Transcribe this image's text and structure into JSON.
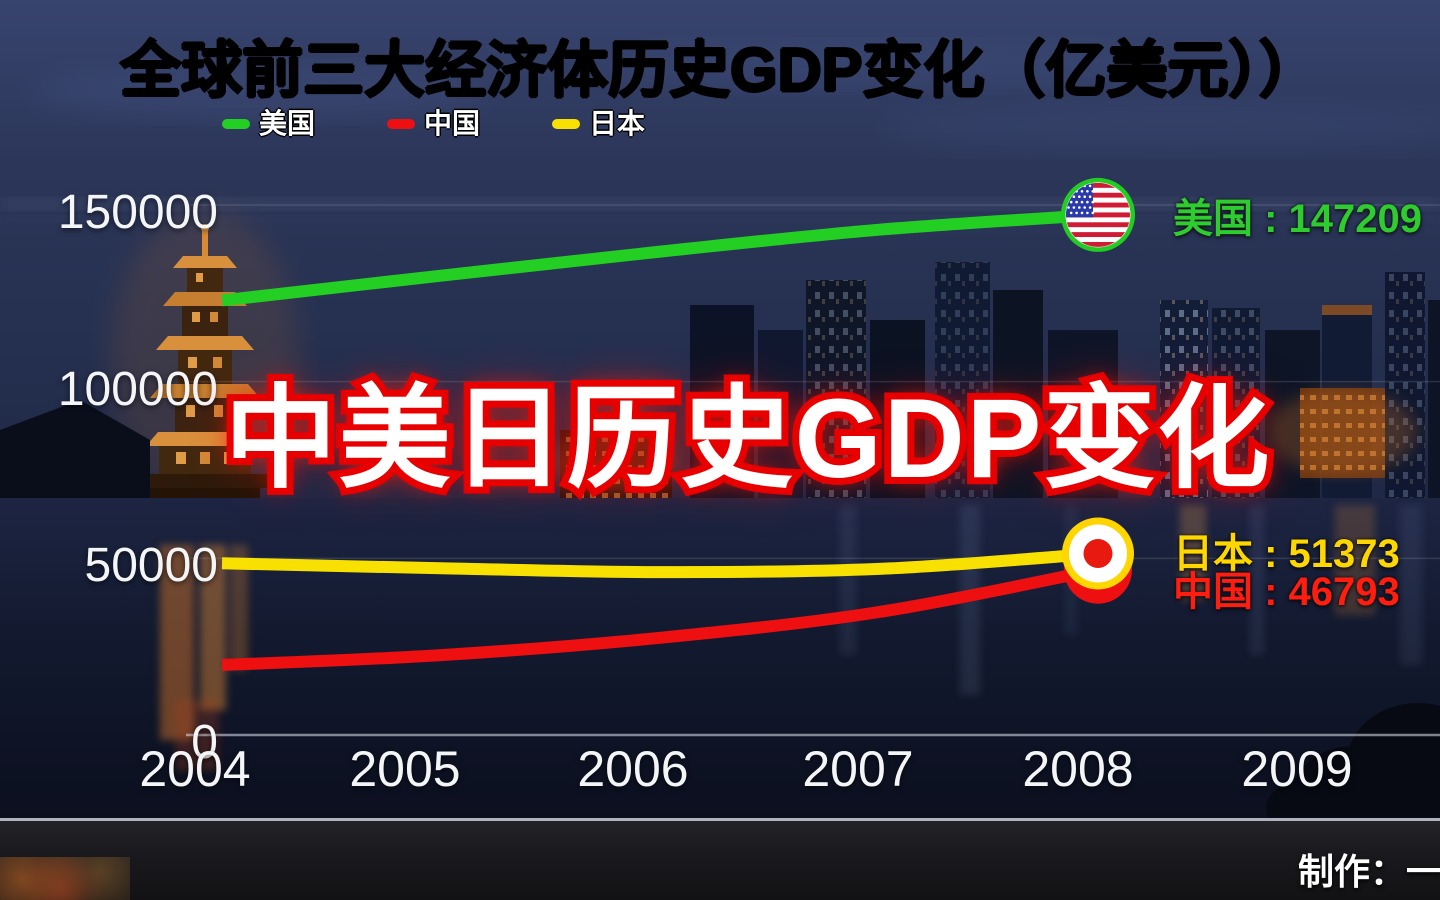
{
  "title": "全球前三大经济体历史GDP变化（亿美元））",
  "overlay_headline": "中美日历史GDP变化",
  "footer": {
    "credit": "制作：一"
  },
  "accent_colors": {
    "us_green": "#24cf24",
    "china_red": "#ee1010",
    "japan_yellow": "#f8e100"
  },
  "chart_data": {
    "type": "line",
    "title": "全球前三大经济体历史GDP变化（亿美元））",
    "unit": "亿美元",
    "x": [
      2004,
      2005,
      2006,
      2007,
      2008
    ],
    "xticks": [
      "2004",
      "2005",
      "2006",
      "2007",
      "2008",
      "2009"
    ],
    "yticks": [
      150000,
      100000,
      50000,
      0
    ],
    "ylim": [
      0,
      150000
    ],
    "grid": "horizontal-faint",
    "legend_position": "top-left",
    "series": [
      {
        "id": "us",
        "name": "美国",
        "color": "#24cf24",
        "label_color": "#2ecc2e",
        "values": [
          123000,
          130000,
          136800,
          143000,
          147209
        ],
        "end_value": 147209,
        "end_label": "美国 : 147209",
        "marker": "us-flag-circle"
      },
      {
        "id": "cn",
        "name": "中国",
        "color": "#ee1010",
        "label_color": "#ff1d10",
        "values": [
          19800,
          22600,
          27500,
          34800,
          46793
        ],
        "end_value": 46793,
        "end_label": "中国 : 46793",
        "marker": "red-circle"
      },
      {
        "id": "jp",
        "name": "日本",
        "color": "#f8e100",
        "label_color": "#ffd700",
        "values": [
          48600,
          47200,
          46100,
          47000,
          51373
        ],
        "end_value": 51373,
        "end_label": "日本 : 51373",
        "marker": "japan-flag-circle"
      }
    ]
  }
}
